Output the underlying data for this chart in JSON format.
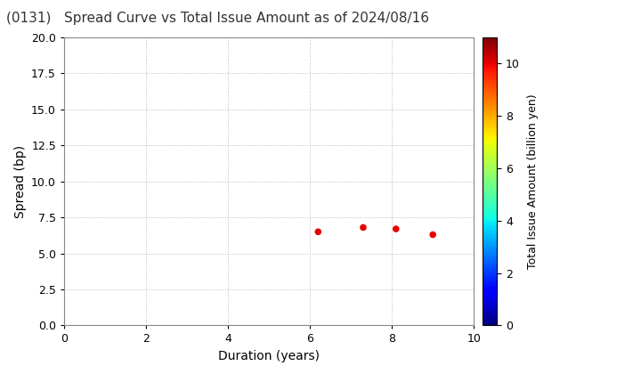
{
  "title": "(0131)   Spread Curve vs Total Issue Amount as of 2024/08/16",
  "xlabel": "Duration (years)",
  "ylabel": "Spread (bp)",
  "colorbar_label": "Total Issue Amount (billion yen)",
  "xlim": [
    0,
    10
  ],
  "ylim": [
    0.0,
    20.0
  ],
  "xticks": [
    0,
    2,
    4,
    6,
    8,
    10
  ],
  "yticks": [
    0.0,
    2.5,
    5.0,
    7.5,
    10.0,
    12.5,
    15.0,
    17.5,
    20.0
  ],
  "colorbar_ticks": [
    0,
    2,
    4,
    6,
    8,
    10
  ],
  "colorbar_range": [
    0,
    11
  ],
  "points": [
    {
      "duration": 6.2,
      "spread": 6.5,
      "amount": 10.0
    },
    {
      "duration": 7.3,
      "spread": 6.8,
      "amount": 10.0
    },
    {
      "duration": 8.1,
      "spread": 6.7,
      "amount": 10.0
    },
    {
      "duration": 9.0,
      "spread": 6.3,
      "amount": 10.0
    }
  ],
  "marker_size": 30,
  "background_color": "#ffffff",
  "grid_color": "#bbbbbb",
  "title_fontsize": 11,
  "axis_fontsize": 10,
  "tick_fontsize": 9,
  "colorbar_fontsize": 9
}
